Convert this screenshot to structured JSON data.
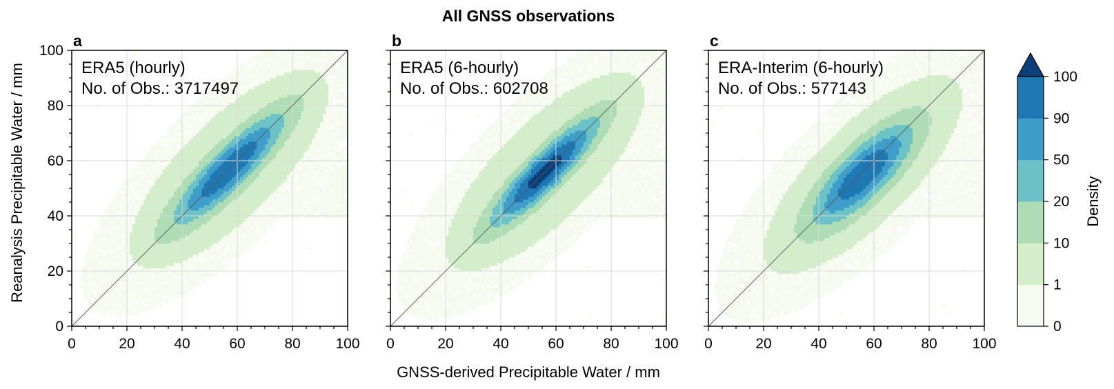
{
  "figure": {
    "title": "All GNSS observations",
    "xlabel": "GNSS-derived Precipitable Water / mm",
    "ylabel": "Reanalysis Precipitable Water / mm"
  },
  "chart_data": [
    {
      "type": "heatmap",
      "panel": "a",
      "dataset": "ERA5 (hourly)",
      "obs_label": "No. of Obs.: 3717497",
      "xlim": [
        0,
        100
      ],
      "ylim": [
        0,
        100
      ],
      "xticks": [
        0,
        20,
        40,
        60,
        80,
        100
      ],
      "yticks": [
        0,
        20,
        40,
        60,
        80,
        100
      ],
      "grid": true,
      "reference_line": "1:1",
      "density_center": [
        57,
        57
      ],
      "peak_density_level": "50-90"
    },
    {
      "type": "heatmap",
      "panel": "b",
      "dataset": "ERA5 (6-hourly)",
      "obs_label": "No. of Obs.: 602708",
      "xlim": [
        0,
        100
      ],
      "ylim": [
        0,
        100
      ],
      "xticks": [
        0,
        20,
        40,
        60,
        80,
        100
      ],
      "yticks": [
        0,
        20,
        40,
        60,
        80,
        100
      ],
      "grid": true,
      "reference_line": "1:1",
      "density_center": [
        56,
        56
      ],
      "peak_density_level": ">100"
    },
    {
      "type": "heatmap",
      "panel": "c",
      "dataset": "ERA-Interim (6-hourly)",
      "obs_label": "No. of Obs.: 577143",
      "xlim": [
        0,
        100
      ],
      "ylim": [
        0,
        100
      ],
      "xticks": [
        0,
        20,
        40,
        60,
        80,
        100
      ],
      "yticks": [
        0,
        20,
        40,
        60,
        80,
        100
      ],
      "grid": true,
      "reference_line": "1:1",
      "density_center": [
        56,
        55
      ],
      "peak_density_level": "50-90"
    }
  ],
  "colorbar": {
    "label": "Density",
    "levels": [
      "0",
      "1",
      "10",
      "20",
      "50",
      "90",
      "100"
    ],
    "colors": [
      "#f5fbef",
      "#d4eecb",
      "#aeddb5",
      "#6cc3c7",
      "#3f9dc9",
      "#1f78b4",
      "#0b3f7a"
    ],
    "extend": "max"
  }
}
